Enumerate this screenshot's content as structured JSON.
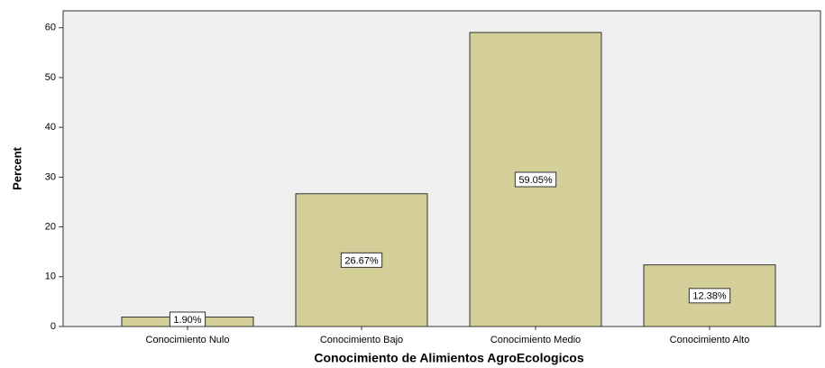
{
  "chart_data": {
    "type": "bar",
    "categories": [
      "Conocimiento Nulo",
      "Conocimiento Bajo",
      "Conocimiento Medio",
      "Conocimiento Alto"
    ],
    "values": [
      1.9,
      26.67,
      59.05,
      12.38
    ],
    "value_labels": [
      "1.90%",
      "26.67%",
      "59.05%",
      "12.38%"
    ],
    "color": "#d4cf99",
    "x_label": "Conocimiento de Alimientos AgroEcologicos",
    "y_label": "Percent",
    "ylim": [
      0,
      63.4
    ],
    "yticks": [
      0,
      10,
      20,
      30,
      40,
      50,
      60
    ]
  }
}
